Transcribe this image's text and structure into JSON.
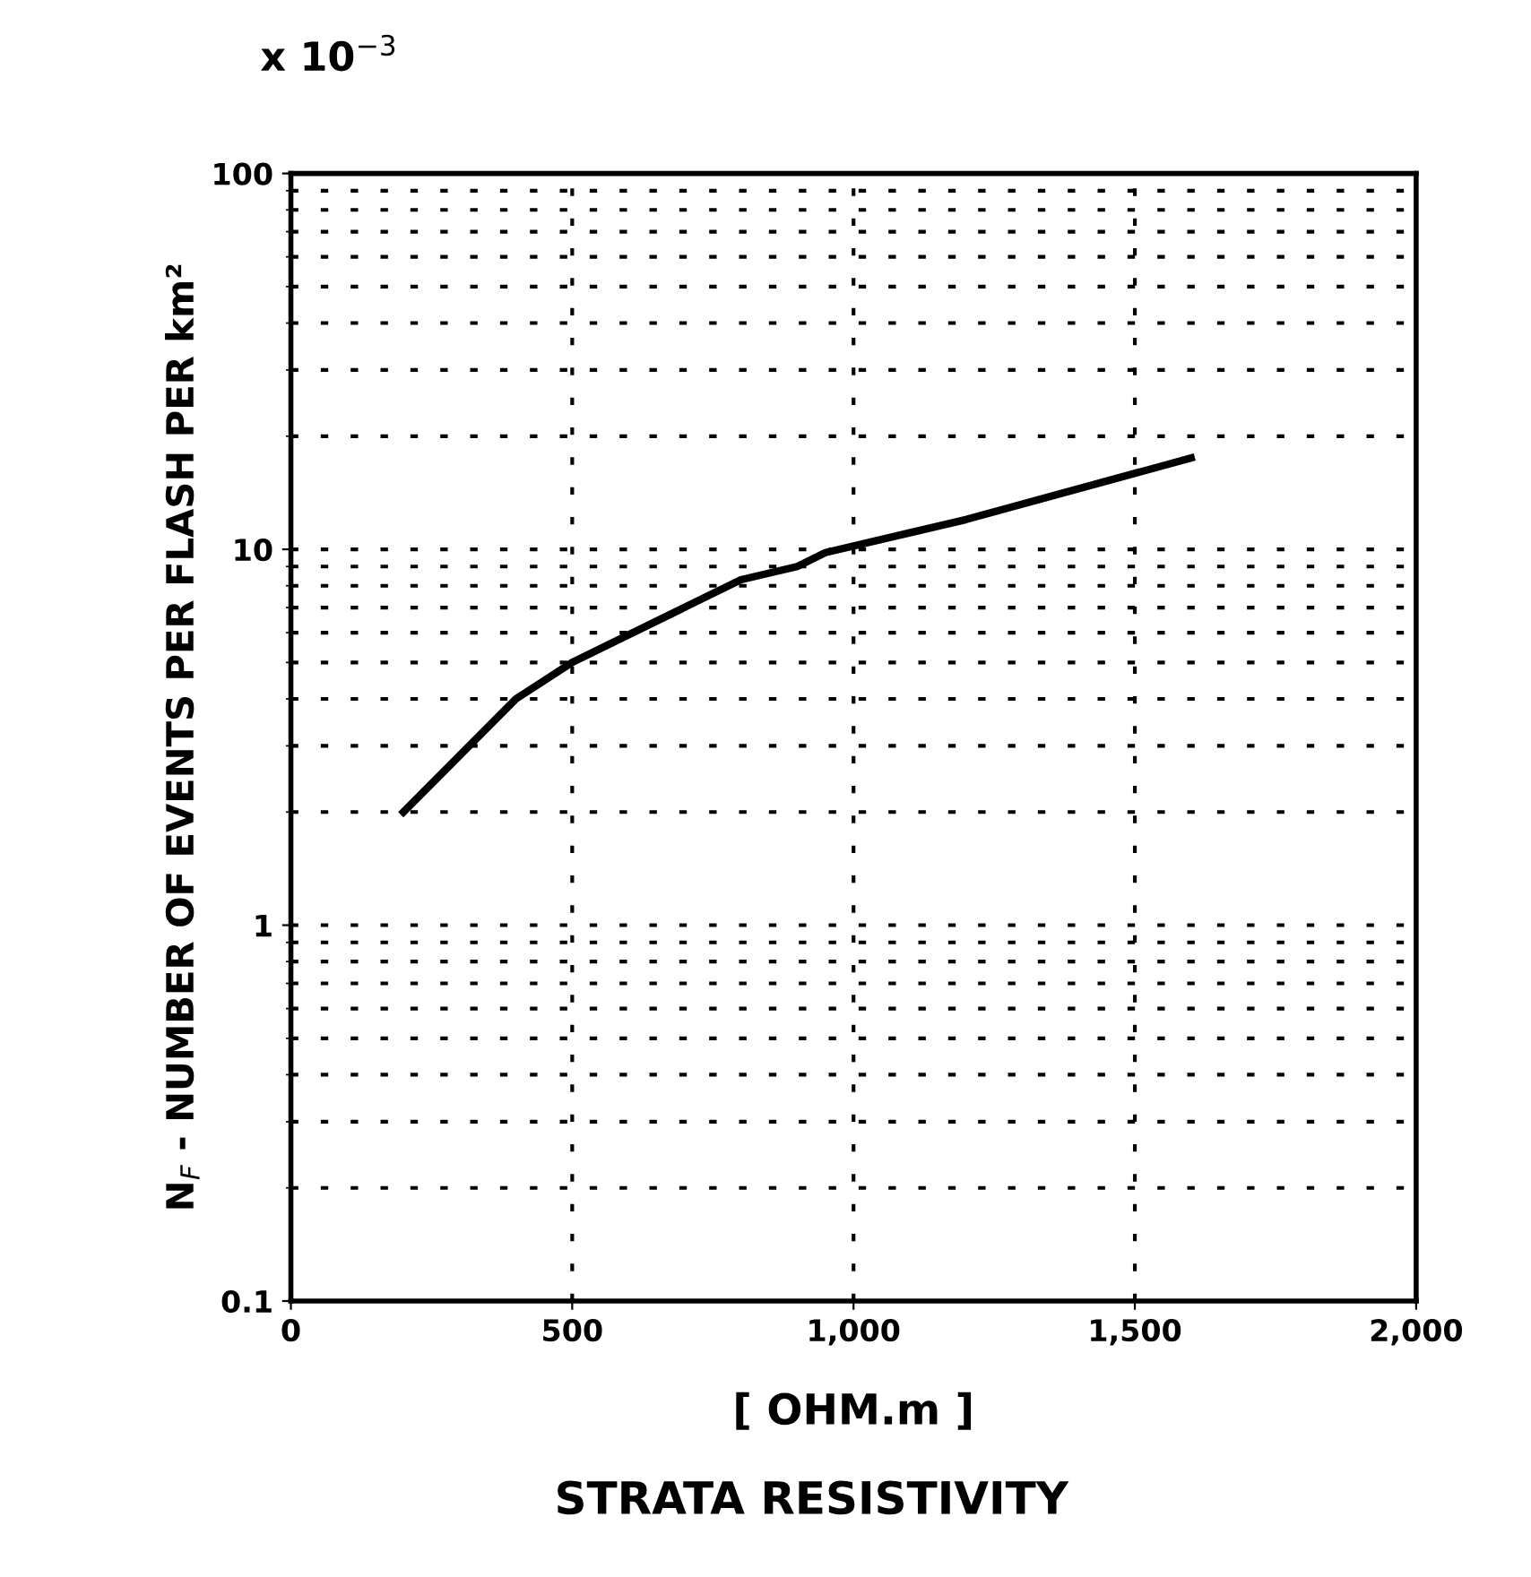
{
  "chart_data": {
    "type": "line",
    "title": "STRATA RESISTIVITY",
    "xlabel": "[ OHM.m ]",
    "ylabel": "N$_{F}$ - NUMBER OF EVENTS PER FLASH PER km²",
    "annotations": [
      "x 10$^{−3}$"
    ],
    "x": [
      200,
      400,
      500,
      800,
      900,
      950,
      1200,
      1600
    ],
    "series": [
      {
        "color": "#000000",
        "values": [
          2,
          4,
          5,
          8.3,
          9,
          9.8,
          12,
          17.5
        ]
      }
    ],
    "log": "y",
    "xlim": [
      0,
      2000
    ],
    "ylim": [
      0.1,
      100
    ],
    "xticks": [
      0,
      500,
      {
        "value": 1000,
        "label": "1,000"
      },
      {
        "value": 1500,
        "label": "1,500"
      },
      {
        "value": 2000,
        "label": "2,000"
      }
    ],
    "yticks": [
      0.1,
      1,
      10,
      100
    ],
    "grid": true,
    "line_style": "solid",
    "marker": "none"
  }
}
